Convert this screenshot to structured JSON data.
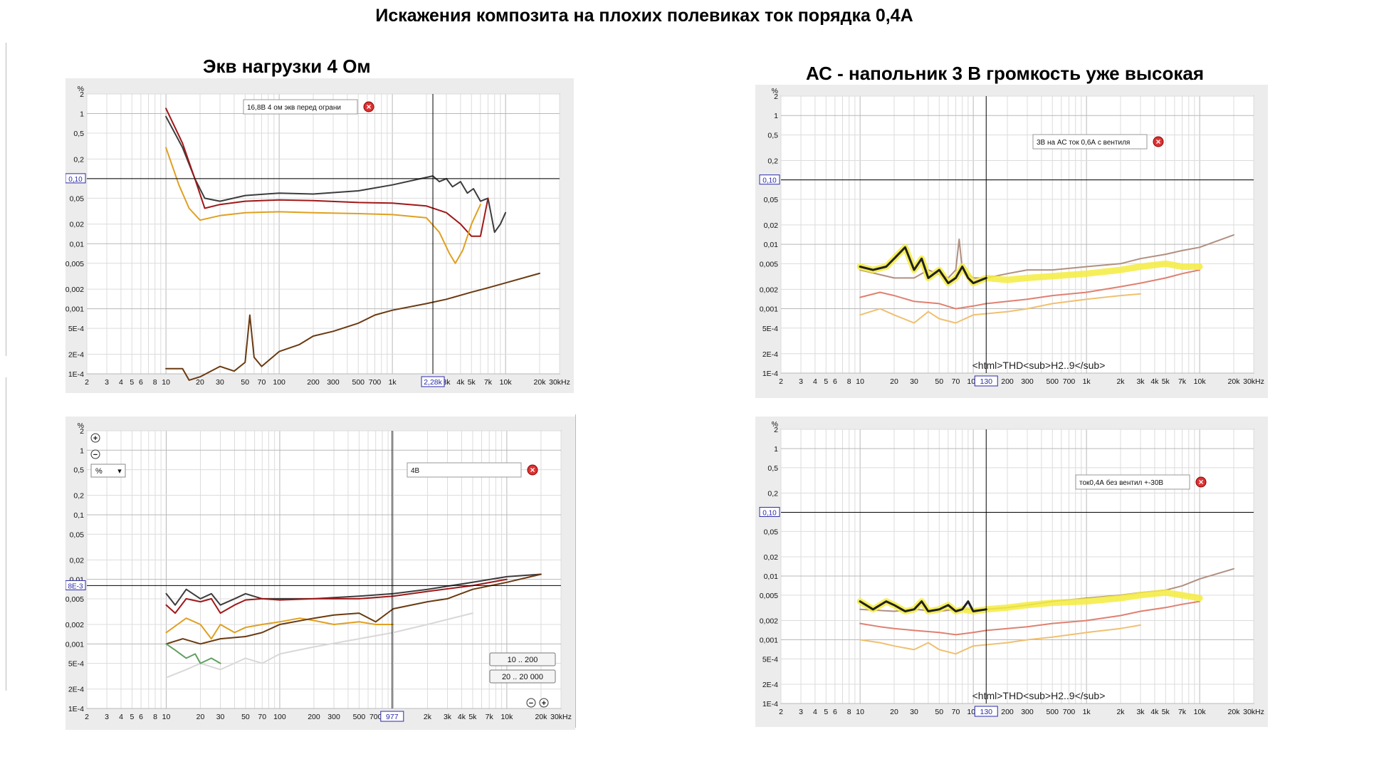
{
  "title": "Искажения композита на плохих полевиках ток порядка 0,4А",
  "panels": [
    {
      "id": "p1",
      "heading": "Экв нагрузки 4 Ом",
      "legend": "16,8В 4 ом экв перед ограни",
      "cursor_x_label": "2,28k",
      "cursor_y_label": "0,10",
      "footer": "",
      "has_tools": false
    },
    {
      "id": "p2",
      "heading": "АС - напольник 3 В громкость уже высокая",
      "legend": "3В на АС ток 0,6А с вентиля",
      "cursor_x_label": "130",
      "cursor_y_label": "0,10",
      "footer": "<html>THD<sub>H2..9</sub>",
      "has_tools": false
    },
    {
      "id": "p3",
      "heading": "",
      "legend": "4В",
      "cursor_x_label": "977",
      "cursor_y_label": "8E-3",
      "footer": "",
      "has_tools": true,
      "unit_select": "%",
      "range_buttons": [
        "10 .. 200",
        "20 .. 20 000"
      ]
    },
    {
      "id": "p4",
      "heading": "",
      "legend": "ток0,4А без вентил +-30В",
      "cursor_x_label": "130",
      "cursor_y_label": "0,10",
      "footer": "<html>THD<sub>H2..9</sub>",
      "has_tools": false
    }
  ],
  "chart_data": [
    {
      "type": "line",
      "title": "Экв нагрузки 4 Ом",
      "ylabel": "%",
      "xlabel": "",
      "x_scale": "log",
      "y_scale": "log",
      "xlim": [
        2,
        30000
      ],
      "ylim": [
        0.0001,
        2
      ],
      "x_tick_labels": [
        "2",
        "3",
        "4",
        "5",
        "6",
        "8",
        "10",
        "20",
        "30",
        "50",
        "70",
        "100",
        "200",
        "300",
        "500",
        "700",
        "1k",
        "2k",
        "3k",
        "4k",
        "5k",
        "7k",
        "10k",
        "20k",
        "30kHz"
      ],
      "y_tick_labels": [
        "%",
        "2",
        "1",
        "0,5",
        "0,2",
        "0,1",
        "0,05",
        "0,02",
        "0,01",
        "0,005",
        "0,002",
        "0,001",
        "5E-4",
        "2E-4",
        "1E-4"
      ],
      "cursor": {
        "x": 2280,
        "y": 0.1
      },
      "series": [
        {
          "color": "#3c3c3c",
          "x": [
            10,
            14,
            18,
            22,
            30,
            50,
            100,
            200,
            500,
            1000,
            2280,
            2600,
            3000,
            3400,
            4000,
            4600,
            5200,
            6000,
            7000,
            8000,
            9000,
            10000
          ],
          "y": [
            0.9,
            0.3,
            0.1,
            0.05,
            0.045,
            0.055,
            0.06,
            0.058,
            0.065,
            0.08,
            0.11,
            0.09,
            0.1,
            0.075,
            0.09,
            0.06,
            0.07,
            0.045,
            0.05,
            0.015,
            0.02,
            0.03
          ]
        },
        {
          "color": "#a01818",
          "x": [
            10,
            14,
            18,
            22,
            30,
            50,
            100,
            200,
            500,
            1000,
            2000,
            3000,
            4000,
            5000,
            6000,
            7000
          ],
          "y": [
            1.2,
            0.35,
            0.1,
            0.035,
            0.04,
            0.045,
            0.047,
            0.046,
            0.043,
            0.042,
            0.038,
            0.03,
            0.02,
            0.013,
            0.013,
            0.05
          ]
        },
        {
          "color": "#e0a020",
          "x": [
            10,
            13,
            16,
            20,
            30,
            50,
            100,
            200,
            500,
            1000,
            2000,
            2600,
            3200,
            3600,
            4200,
            5000,
            6000
          ],
          "y": [
            0.3,
            0.08,
            0.035,
            0.023,
            0.027,
            0.03,
            0.031,
            0.03,
            0.029,
            0.028,
            0.025,
            0.015,
            0.007,
            0.005,
            0.008,
            0.02,
            0.04
          ]
        },
        {
          "color": "#6a3a10",
          "x": [
            10,
            14,
            16,
            20,
            30,
            40,
            50,
            55,
            60,
            70,
            100,
            150,
            200,
            300,
            500,
            700,
            1000,
            2000,
            3000,
            5000,
            7000,
            10000,
            20000
          ],
          "y": [
            0.00012,
            0.00012,
            8e-05,
            9e-05,
            0.00013,
            0.00011,
            0.00015,
            0.0008,
            0.00018,
            0.00013,
            0.00022,
            0.00028,
            0.00038,
            0.00045,
            0.0006,
            0.0008,
            0.00095,
            0.0012,
            0.0014,
            0.0018,
            0.0021,
            0.0025,
            0.0035
          ]
        }
      ]
    },
    {
      "type": "line",
      "title": "АС - напольник 3 В громкость уже высокая",
      "ylabel": "%",
      "xlabel": "",
      "x_scale": "log",
      "y_scale": "log",
      "xlim": [
        2,
        30000
      ],
      "ylim": [
        0.0001,
        2
      ],
      "x_tick_labels": [
        "2",
        "3",
        "4",
        "5",
        "6",
        "8",
        "10",
        "20",
        "30",
        "50",
        "70",
        "100",
        "200",
        "300",
        "500",
        "700",
        "1k",
        "2k",
        "3k",
        "4k",
        "5k",
        "7k",
        "10k",
        "20k",
        "30kHz"
      ],
      "y_tick_labels": [
        "%",
        "2",
        "1",
        "0,5",
        "0,2",
        "0,1",
        "0,05",
        "0,02",
        "0,01",
        "0,005",
        "0,002",
        "0,001",
        "5E-4",
        "2E-4",
        "1E-4"
      ],
      "cursor": {
        "x": 130,
        "y": 0.1
      },
      "series": [
        {
          "color": "#b09080",
          "x": [
            10,
            20,
            30,
            40,
            60,
            70,
            75,
            80,
            100,
            130,
            200,
            300,
            500,
            1000,
            2000,
            3000,
            5000,
            7000,
            10000,
            20000
          ],
          "y": [
            0.004,
            0.003,
            0.003,
            0.004,
            0.003,
            0.004,
            0.012,
            0.004,
            0.003,
            0.003,
            0.0035,
            0.004,
            0.004,
            0.0045,
            0.005,
            0.006,
            0.007,
            0.008,
            0.009,
            0.014
          ]
        },
        {
          "color": "#e08070",
          "x": [
            10,
            15,
            20,
            30,
            50,
            70,
            100,
            130,
            200,
            300,
            500,
            1000,
            2000,
            3000,
            5000,
            7000,
            10000
          ],
          "y": [
            0.0015,
            0.0018,
            0.0016,
            0.0013,
            0.0012,
            0.001,
            0.0011,
            0.0012,
            0.0013,
            0.0014,
            0.0016,
            0.0018,
            0.0022,
            0.0025,
            0.003,
            0.0035,
            0.004
          ]
        },
        {
          "color": "#f0c070",
          "x": [
            10,
            15,
            20,
            30,
            40,
            50,
            70,
            100,
            200,
            300,
            500,
            1000,
            2000,
            3000
          ],
          "y": [
            0.0008,
            0.001,
            0.0008,
            0.0006,
            0.0009,
            0.0007,
            0.0006,
            0.0008,
            0.0009,
            0.001,
            0.0012,
            0.0014,
            0.0016,
            0.0017
          ]
        },
        {
          "color": "#f4ec40",
          "x": [
            10,
            13,
            17,
            20,
            25,
            30,
            35,
            40,
            50,
            60,
            70,
            80,
            100,
            130,
            200,
            300,
            500,
            1000,
            2000,
            3000,
            5000,
            7000,
            10000
          ],
          "y": [
            0.0045,
            0.004,
            0.0045,
            0.006,
            0.009,
            0.004,
            0.006,
            0.003,
            0.004,
            0.0025,
            0.003,
            0.0045,
            0.0025,
            0.003,
            0.0028,
            0.003,
            0.0032,
            0.0035,
            0.004,
            0.0045,
            0.005,
            0.0045,
            0.0045
          ]
        },
        {
          "color": "#202020",
          "x": [
            10,
            13,
            17,
            20,
            25,
            30,
            35,
            40,
            50,
            60,
            70,
            80,
            90,
            100,
            130
          ],
          "y": [
            0.0045,
            0.004,
            0.0045,
            0.006,
            0.009,
            0.004,
            0.006,
            0.003,
            0.004,
            0.0025,
            0.003,
            0.0045,
            0.003,
            0.0025,
            0.003
          ]
        }
      ]
    },
    {
      "type": "line",
      "title": "",
      "ylabel": "%",
      "xlabel": "",
      "x_scale": "log",
      "y_scale": "log",
      "xlim": [
        2,
        30000
      ],
      "ylim": [
        0.0001,
        2
      ],
      "x_tick_labels": [
        "2",
        "3",
        "4",
        "5",
        "6",
        "8",
        "10",
        "20",
        "30",
        "50",
        "70",
        "100",
        "200",
        "300",
        "500",
        "700",
        "1k",
        "2k",
        "3k",
        "4k",
        "5k",
        "7k",
        "10k",
        "20k",
        "30kHz"
      ],
      "y_tick_labels": [
        "%",
        "2",
        "1",
        "0,5",
        "0,2",
        "0,1",
        "0,05",
        "0,02",
        "0,01",
        "0,005",
        "0,002",
        "0,001",
        "5E-4",
        "2E-4",
        "1E-4"
      ],
      "cursor": {
        "x": 977,
        "y": 0.008
      },
      "series": [
        {
          "color": "#3c3c3c",
          "x": [
            10,
            12,
            15,
            20,
            25,
            30,
            40,
            50,
            70,
            100,
            200,
            500,
            1000,
            2000,
            5000,
            10000,
            20000
          ],
          "y": [
            0.006,
            0.004,
            0.007,
            0.005,
            0.006,
            0.004,
            0.005,
            0.006,
            0.005,
            0.005,
            0.005,
            0.0055,
            0.006,
            0.007,
            0.009,
            0.011,
            0.012
          ]
        },
        {
          "color": "#a01818",
          "x": [
            10,
            12,
            15,
            20,
            25,
            30,
            40,
            50,
            70,
            100,
            200,
            500,
            1000,
            2000,
            5000,
            10000
          ],
          "y": [
            0.004,
            0.003,
            0.005,
            0.0045,
            0.005,
            0.003,
            0.004,
            0.0048,
            0.005,
            0.0048,
            0.005,
            0.005,
            0.0055,
            0.0065,
            0.008,
            0.01
          ]
        },
        {
          "color": "#e0a020",
          "x": [
            10,
            15,
            20,
            25,
            30,
            40,
            50,
            70,
            100,
            150,
            200,
            300,
            500,
            700,
            1000
          ],
          "y": [
            0.0015,
            0.0025,
            0.002,
            0.0012,
            0.002,
            0.0015,
            0.0018,
            0.002,
            0.0022,
            0.0025,
            0.0023,
            0.002,
            0.0022,
            0.002,
            0.002
          ]
        },
        {
          "color": "#6a3a10",
          "x": [
            10,
            14,
            20,
            30,
            50,
            70,
            100,
            200,
            300,
            500,
            700,
            1000,
            2000,
            3000,
            5000,
            10000,
            20000
          ],
          "y": [
            0.001,
            0.0012,
            0.001,
            0.0012,
            0.0013,
            0.0015,
            0.002,
            0.0025,
            0.0028,
            0.003,
            0.0022,
            0.0035,
            0.0045,
            0.005,
            0.007,
            0.009,
            0.012
          ]
        },
        {
          "color": "#d8d8d8",
          "x": [
            10,
            15,
            20,
            30,
            50,
            70,
            100,
            200,
            500,
            1000,
            2000,
            5000
          ],
          "y": [
            0.0003,
            0.0004,
            0.0005,
            0.0004,
            0.0006,
            0.0005,
            0.0007,
            0.0009,
            0.0012,
            0.0015,
            0.002,
            0.003
          ]
        },
        {
          "color": "#60a060",
          "x": [
            10,
            12,
            15,
            18,
            20,
            25,
            30
          ],
          "y": [
            0.001,
            0.0008,
            0.0006,
            0.0007,
            0.0005,
            0.0006,
            0.0005
          ]
        }
      ]
    },
    {
      "type": "line",
      "title": "",
      "ylabel": "%",
      "xlabel": "",
      "x_scale": "log",
      "y_scale": "log",
      "xlim": [
        2,
        30000
      ],
      "ylim": [
        0.0001,
        2
      ],
      "x_tick_labels": [
        "2",
        "3",
        "4",
        "5",
        "6",
        "8",
        "10",
        "20",
        "30",
        "50",
        "70",
        "100",
        "200",
        "300",
        "500",
        "700",
        "1k",
        "2k",
        "3k",
        "4k",
        "5k",
        "7k",
        "10k",
        "20k",
        "30kHz"
      ],
      "y_tick_labels": [
        "%",
        "2",
        "1",
        "0,5",
        "0,2",
        "0,1",
        "0,05",
        "0,02",
        "0,01",
        "0,005",
        "0,002",
        "0,001",
        "5E-4",
        "2E-4",
        "1E-4"
      ],
      "cursor": {
        "x": 130,
        "y": 0.1
      },
      "series": [
        {
          "color": "#b09080",
          "x": [
            10,
            20,
            30,
            50,
            70,
            100,
            130,
            200,
            300,
            500,
            1000,
            2000,
            3000,
            5000,
            7000,
            10000,
            20000
          ],
          "y": [
            0.003,
            0.0028,
            0.003,
            0.0028,
            0.003,
            0.003,
            0.003,
            0.0032,
            0.0035,
            0.004,
            0.0045,
            0.005,
            0.0055,
            0.006,
            0.007,
            0.009,
            0.013
          ]
        },
        {
          "color": "#e08070",
          "x": [
            10,
            15,
            20,
            30,
            50,
            70,
            100,
            130,
            200,
            300,
            500,
            1000,
            2000,
            3000,
            5000,
            7000,
            10000
          ],
          "y": [
            0.0018,
            0.0016,
            0.0015,
            0.0014,
            0.0013,
            0.0012,
            0.0013,
            0.0014,
            0.0015,
            0.0016,
            0.0018,
            0.002,
            0.0024,
            0.0028,
            0.0032,
            0.0036,
            0.004
          ]
        },
        {
          "color": "#f0c070",
          "x": [
            10,
            15,
            20,
            30,
            40,
            50,
            70,
            100,
            200,
            300,
            500,
            1000,
            2000,
            3000
          ],
          "y": [
            0.001,
            0.0009,
            0.0008,
            0.0007,
            0.0009,
            0.0007,
            0.0006,
            0.0008,
            0.0009,
            0.001,
            0.0011,
            0.0013,
            0.0015,
            0.0017
          ]
        },
        {
          "color": "#f4ec40",
          "x": [
            10,
            13,
            17,
            20,
            25,
            30,
            35,
            40,
            50,
            60,
            70,
            80,
            100,
            130,
            200,
            300,
            500,
            1000,
            2000,
            3000,
            5000,
            7000,
            10000
          ],
          "y": [
            0.004,
            0.003,
            0.004,
            0.0035,
            0.0028,
            0.003,
            0.004,
            0.0028,
            0.003,
            0.0035,
            0.0028,
            0.003,
            0.0028,
            0.003,
            0.0032,
            0.0035,
            0.0038,
            0.004,
            0.0045,
            0.005,
            0.0055,
            0.005,
            0.0045
          ]
        },
        {
          "color": "#202020",
          "x": [
            10,
            13,
            17,
            20,
            25,
            30,
            35,
            40,
            50,
            60,
            70,
            80,
            90,
            100,
            130
          ],
          "y": [
            0.004,
            0.003,
            0.004,
            0.0035,
            0.0028,
            0.003,
            0.004,
            0.0028,
            0.003,
            0.0035,
            0.0028,
            0.003,
            0.004,
            0.0028,
            0.003
          ]
        }
      ]
    }
  ]
}
